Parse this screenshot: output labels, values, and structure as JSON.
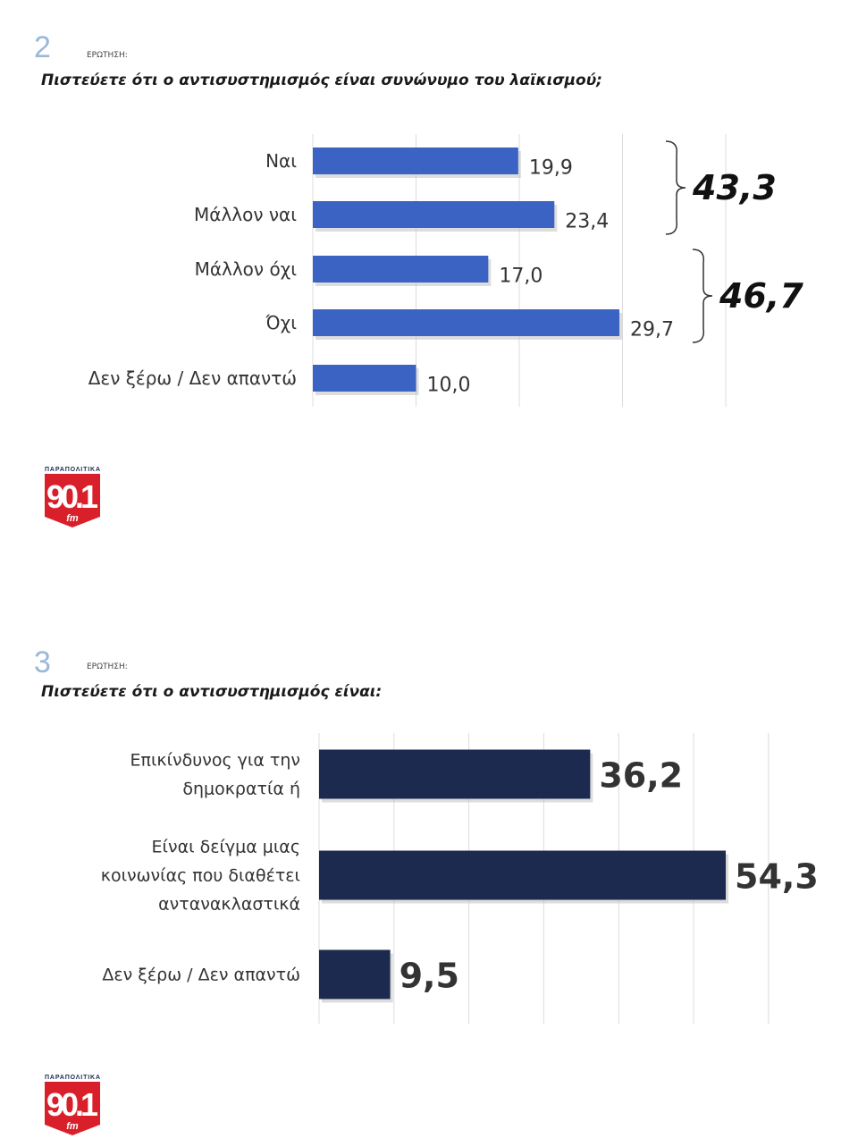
{
  "chart_data": [
    {
      "type": "bar",
      "orientation": "horizontal",
      "question_number": "2",
      "question_label": "ΕΡΩΤΗΣΗ:",
      "title": "Πιστεύετε ότι ο αντισυστημισμός είναι συνώνυμο του λαϊκισμού;",
      "categories": [
        "Ναι",
        "Μάλλον ναι",
        "Μάλλον όχι",
        "Όχι",
        "Δεν ξέρω / Δεν απαντώ"
      ],
      "values": [
        19.9,
        23.4,
        17.0,
        29.7,
        10.0
      ],
      "value_labels": [
        "19,9",
        "23,4",
        "17,0",
        "29,7",
        "10,0"
      ],
      "groups": [
        {
          "label": "43,3",
          "value": 43.3,
          "members": [
            0,
            1
          ]
        },
        {
          "label": "46,7",
          "value": 46.7,
          "members": [
            2,
            3
          ]
        }
      ],
      "xlim": [
        0,
        40
      ],
      "grid": true,
      "bar_color": "#3a63c4"
    },
    {
      "type": "bar",
      "orientation": "horizontal",
      "question_number": "3",
      "question_label": "ΕΡΩΤΗΣΗ:",
      "title": "Πιστεύετε ότι ο αντισυστημισμός είναι:",
      "categories": [
        [
          "Επικίνδυνος για την",
          "δημοκρατία ή"
        ],
        [
          "Είναι δείγμα μιας",
          "κοινωνίας που διαθέτει",
          "αντανακλαστικά"
        ],
        [
          "Δεν ξέρω / Δεν απαντώ"
        ]
      ],
      "values": [
        36.2,
        54.3,
        9.5
      ],
      "value_labels": [
        "36,2",
        "54,3",
        "9,5"
      ],
      "xlim": [
        0,
        60
      ],
      "grid": true,
      "bar_color": "#1b2a4e"
    }
  ],
  "logo": {
    "top": "ΠΑΡΑΠΟΛΙΤΙΚΑ",
    "main": "90.1",
    "sub": "fm",
    "color": "#d9202a"
  }
}
